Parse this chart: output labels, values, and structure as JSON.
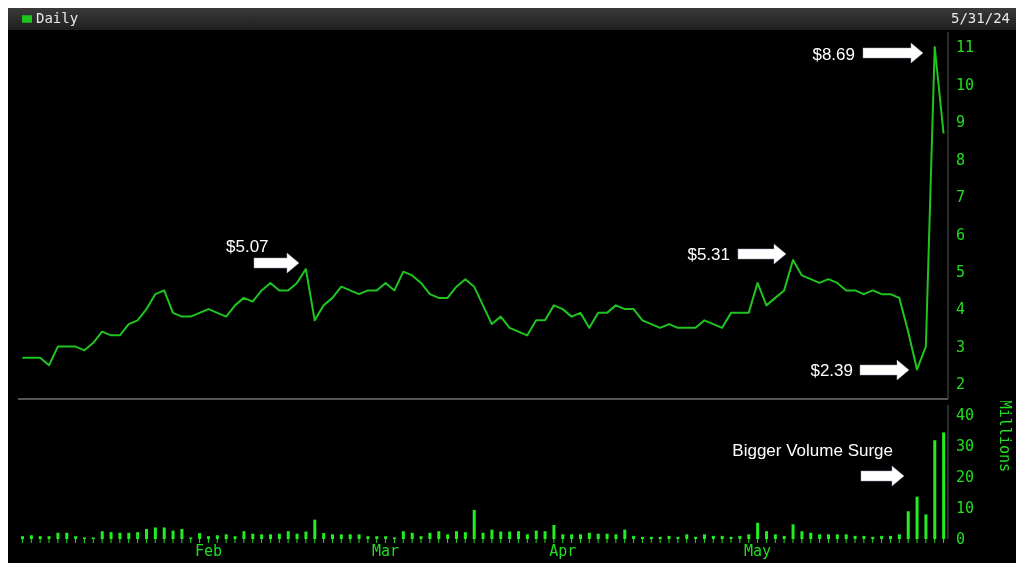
{
  "chart_data": [
    {
      "type": "line",
      "subtitle": "5/31/24",
      "legend": "top left",
      "tick_labels": "y",
      "series": [
        {
          "name": "Daily",
          "color": "#1fc41f",
          "values": [
            2.7,
            2.7,
            2.7,
            2.5,
            3.0,
            3.0,
            3.0,
            2.9,
            3.1,
            3.4,
            3.3,
            3.3,
            3.6,
            3.7,
            4.0,
            4.4,
            4.5,
            3.9,
            3.8,
            3.8,
            3.9,
            4.0,
            3.9,
            3.8,
            4.1,
            4.3,
            4.2,
            4.5,
            4.7,
            4.5,
            4.5,
            4.7,
            5.07,
            3.7,
            4.1,
            4.3,
            4.6,
            4.5,
            4.4,
            4.5,
            4.5,
            4.7,
            4.5,
            5.0,
            4.9,
            4.7,
            4.4,
            4.3,
            4.3,
            4.6,
            4.8,
            4.6,
            4.1,
            3.6,
            3.8,
            3.5,
            3.4,
            3.3,
            3.7,
            3.7,
            4.1,
            4.0,
            3.8,
            3.9,
            3.5,
            3.9,
            3.9,
            4.1,
            4.0,
            4.0,
            3.7,
            3.6,
            3.5,
            3.6,
            3.5,
            3.5,
            3.5,
            3.7,
            3.6,
            3.5,
            3.9,
            3.9,
            3.9,
            4.7,
            4.1,
            4.3,
            4.5,
            5.31,
            4.9,
            4.8,
            4.7,
            4.8,
            4.7,
            4.5,
            4.5,
            4.4,
            4.5,
            4.4,
            4.4,
            4.3,
            3.4,
            2.39,
            3.0,
            11.0,
            8.69
          ]
        }
      ],
      "ylim": [
        1.6,
        11.4
      ],
      "yticks": [
        2,
        3,
        4,
        5,
        6,
        7,
        8,
        9,
        10,
        11
      ],
      "annotations": [
        "$5.07",
        "$5.31",
        "$2.39",
        "$8.69"
      ]
    },
    {
      "type": "bar",
      "ylabel": "Millions",
      "color": "#22ee22",
      "categories": [
        null,
        null,
        null,
        null,
        null,
        null,
        null,
        null,
        null,
        null,
        null,
        null,
        null,
        null,
        null,
        null,
        null,
        null,
        null,
        null,
        null,
        "Feb",
        null,
        null,
        null,
        null,
        null,
        null,
        null,
        null,
        null,
        null,
        null,
        null,
        null,
        null,
        null,
        null,
        null,
        null,
        null,
        "Mar",
        null,
        null,
        null,
        null,
        null,
        null,
        null,
        null,
        null,
        null,
        null,
        null,
        null,
        null,
        null,
        null,
        null,
        null,
        null,
        "Apr",
        null,
        null,
        null,
        null,
        null,
        null,
        null,
        null,
        null,
        null,
        null,
        null,
        null,
        null,
        null,
        null,
        null,
        null,
        null,
        null,
        null,
        "May",
        null,
        null,
        null,
        null,
        null,
        null,
        null,
        null,
        null,
        null,
        null,
        null,
        null,
        null,
        null,
        null,
        null,
        null,
        null,
        null,
        null
      ],
      "values": [
        0.9,
        1.2,
        0.9,
        0.9,
        2.0,
        2.0,
        0.9,
        0.5,
        0.5,
        2.5,
        2.2,
        2.0,
        2.0,
        2.2,
        3.2,
        3.7,
        3.7,
        2.7,
        3.2,
        0.5,
        1.9,
        0.9,
        1.2,
        1.5,
        0.9,
        2.5,
        1.7,
        1.5,
        1.5,
        1.7,
        2.5,
        1.7,
        2.4,
        6.2,
        1.9,
        1.5,
        1.5,
        1.5,
        1.5,
        0.9,
        0.9,
        0.9,
        0.5,
        2.5,
        2.0,
        0.9,
        2.0,
        2.5,
        1.5,
        2.5,
        2.2,
        9.3,
        2.0,
        3.0,
        2.4,
        2.4,
        2.5,
        1.5,
        2.7,
        2.5,
        4.5,
        1.5,
        1.5,
        1.5,
        2.0,
        1.7,
        1.7,
        1.5,
        3.0,
        1.0,
        0.7,
        0.7,
        0.7,
        1.0,
        0.7,
        1.5,
        0.7,
        1.5,
        1.0,
        1.0,
        0.7,
        1.0,
        1.5,
        5.2,
        2.5,
        1.5,
        1.0,
        4.7,
        2.5,
        2.0,
        1.5,
        1.5,
        1.5,
        1.5,
        1.0,
        1.0,
        0.7,
        1.0,
        1.0,
        1.5,
        8.9,
        13.6,
        7.9,
        31.7,
        34.2
      ],
      "ylim": [
        0,
        43
      ],
      "yticks": [
        0,
        10,
        20,
        30,
        40
      ],
      "annotations": [
        "Bigger Volume Surge"
      ]
    }
  ]
}
